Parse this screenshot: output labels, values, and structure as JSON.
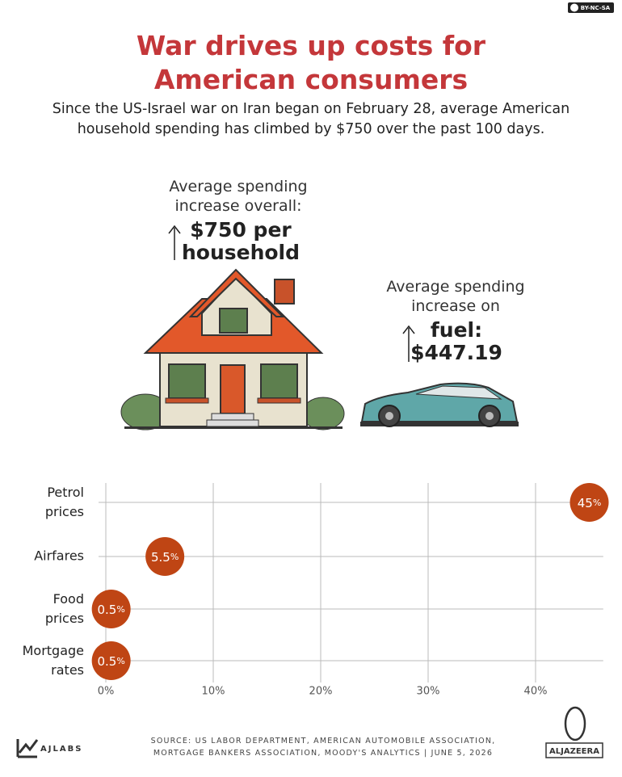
{
  "license": "BY-NC-SA",
  "title": "War drives up costs for American consumers",
  "subtitle": "Since the US-Israel war on Iran began on February 28, average American household spending has climbed by $750 over the past 100 days.",
  "overall_label": "Average spending increase overall:",
  "overall_value": "$750 per household",
  "fuel_label": "Average spending increase on",
  "fuel_value": "fuel: $447.19",
  "chart_data": {
    "type": "dot",
    "categories": [
      "Petrol prices",
      "Airfares",
      "Food prices",
      "Mortgage rates"
    ],
    "values": [
      45,
      5.5,
      0.5,
      0.5
    ],
    "value_labels": [
      "45%",
      "5.5%",
      "0.5%",
      "0.5%"
    ],
    "color": "#bf4514",
    "xlim": [
      0,
      45.7
    ],
    "xticks": [
      {
        "value": 0,
        "label": "0%"
      },
      {
        "value": 10,
        "label": "10%"
      },
      {
        "value": 20,
        "label": "20%"
      },
      {
        "value": 30,
        "label": "30%"
      },
      {
        "value": 40,
        "label": "40%"
      }
    ],
    "grid": true
  },
  "source": "SOURCE: US LABOR DEPARTMENT, AMERICAN AUTOMOBILE ASSOCIATION, MORTGAGE BANKERS ASSOCIATION, MOODY'S ANALYTICS | JUNE 5, 2026",
  "brand_left": "AJLABS",
  "brand_right": "ALJAZEERA"
}
